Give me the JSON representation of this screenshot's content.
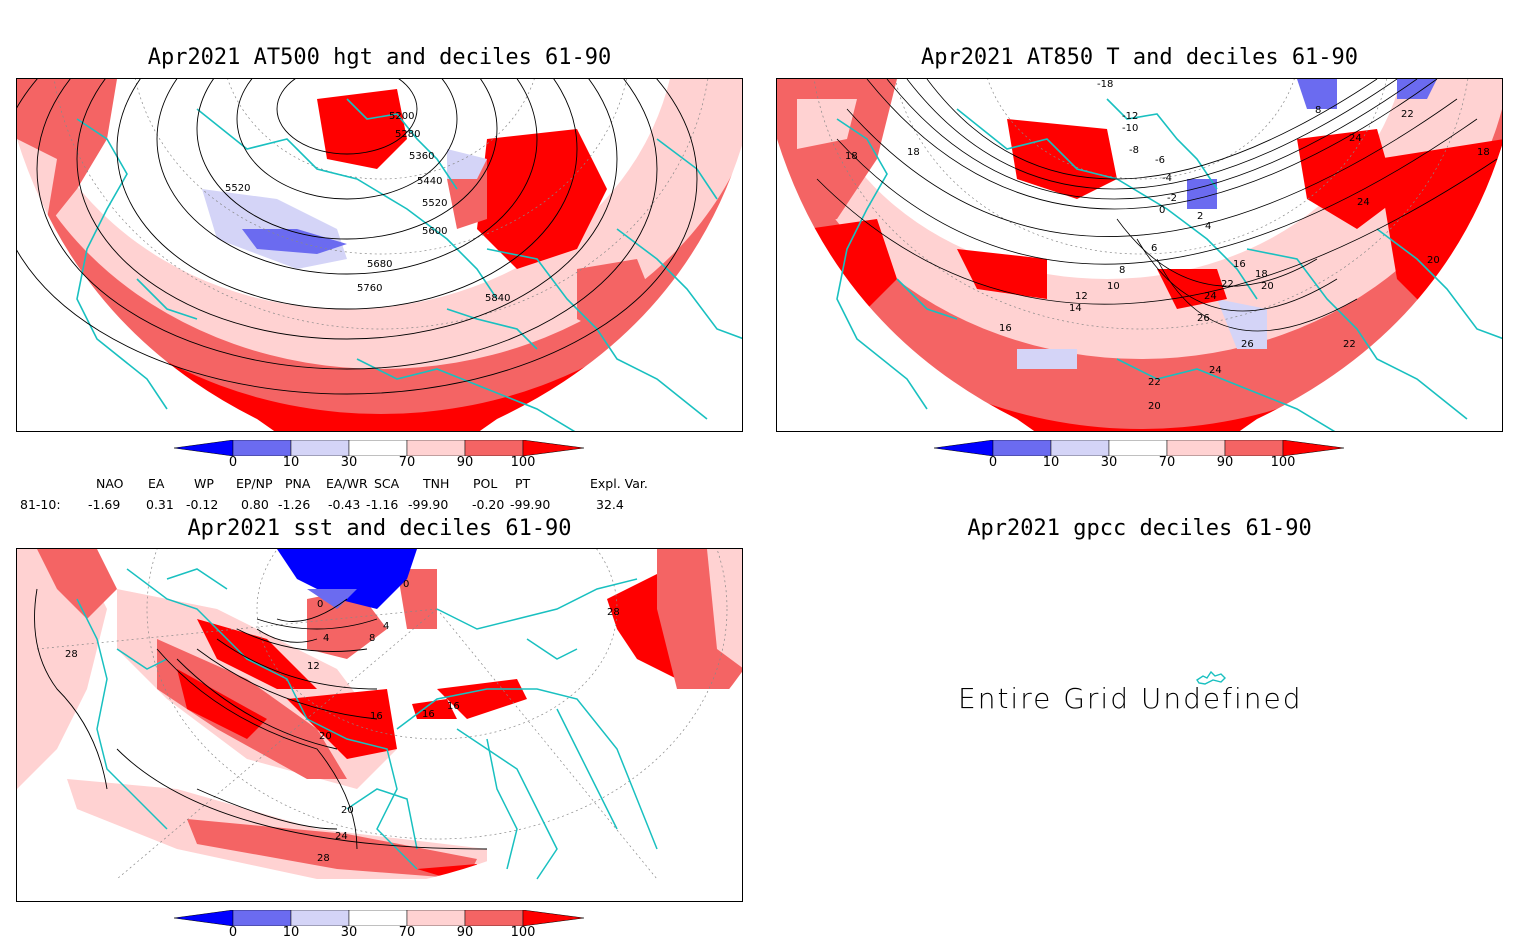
{
  "panels": {
    "hgt": {
      "title": "Apr2021 AT500 hgt and deciles 61-90",
      "contour_labels": [
        "5200",
        "5280",
        "5360",
        "5440",
        "5520",
        "5520",
        "5600",
        "5680",
        "5760",
        "5840"
      ]
    },
    "t850": {
      "title": "Apr2021 AT850 T and deciles 61-90",
      "contour_labels": [
        "-18",
        "-12",
        "-10",
        "-8",
        "-6",
        "-4",
        "-2",
        "0",
        "2",
        "4",
        "6",
        "8",
        "10",
        "12",
        "14",
        "16",
        "16",
        "18",
        "18",
        "20",
        "20",
        "20",
        "22",
        "22",
        "22",
        "24",
        "24",
        "24",
        "26",
        "26",
        "8",
        "18",
        "18",
        "24",
        "22"
      ]
    },
    "sst": {
      "title": "Apr2021 sst and deciles 61-90",
      "contour_labels": [
        "0",
        "0",
        "4",
        "4",
        "8",
        "12",
        "16",
        "16",
        "16",
        "20",
        "20",
        "24",
        "28",
        "28",
        "28"
      ]
    },
    "gpcc": {
      "title": "Apr2021 gpcc deciles 61-90",
      "message": "Entire Grid Undefined"
    }
  },
  "colorbar": {
    "labels": [
      "0",
      "10",
      "30",
      "70",
      "90",
      "100"
    ],
    "colors": [
      "#0000ff",
      "#6b6bf0",
      "#d4d4f7",
      "#ffffff",
      "#ffd2d2",
      "#f46464",
      "#ff0000"
    ]
  },
  "indices": {
    "row_label": "81-10:",
    "headers": [
      "NAO",
      "EA",
      "WP",
      "EP/NP",
      "PNA",
      "EA/WR",
      "SCA",
      "TNH",
      "POL",
      "PT",
      "Expl. Var."
    ],
    "values": [
      "-1.69",
      "0.31",
      "-0.12",
      "0.80",
      "-1.26",
      "-0.43",
      "-1.16",
      "-99.90",
      "-0.20",
      "-99.90",
      "32.4"
    ]
  }
}
